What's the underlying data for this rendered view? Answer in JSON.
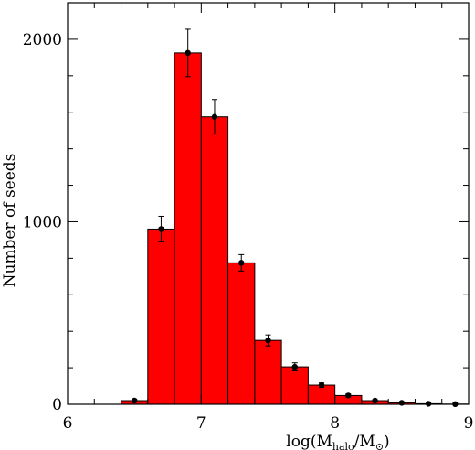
{
  "chart_data": {
    "type": "bar",
    "xlabel_parts": {
      "prefix": "log(M",
      "sub1": "halo",
      "mid": "/M",
      "sub2": "⊙",
      "suffix": ")"
    },
    "ylabel": "Number of seeds",
    "xlim": [
      6,
      9
    ],
    "ylim": [
      0,
      2200
    ],
    "xticks": [
      6,
      7,
      8,
      9
    ],
    "yticks": [
      0,
      1000,
      2000
    ],
    "bin_width": 0.2,
    "bins": [
      {
        "x": 6.5,
        "value": 20,
        "error": 8
      },
      {
        "x": 6.7,
        "value": 960,
        "error": 70
      },
      {
        "x": 6.9,
        "value": 1925,
        "error": 130
      },
      {
        "x": 7.1,
        "value": 1575,
        "error": 95
      },
      {
        "x": 7.3,
        "value": 775,
        "error": 45
      },
      {
        "x": 7.5,
        "value": 350,
        "error": 30
      },
      {
        "x": 7.7,
        "value": 205,
        "error": 22
      },
      {
        "x": 7.9,
        "value": 105,
        "error": 12
      },
      {
        "x": 8.1,
        "value": 48,
        "error": 8
      },
      {
        "x": 8.3,
        "value": 20,
        "error": 5
      },
      {
        "x": 8.5,
        "value": 8,
        "error": 3
      },
      {
        "x": 8.7,
        "value": 3,
        "error": 2
      },
      {
        "x": 8.9,
        "value": 1,
        "error": 1
      }
    ],
    "bar_color": "#ff0000",
    "grid": false
  }
}
